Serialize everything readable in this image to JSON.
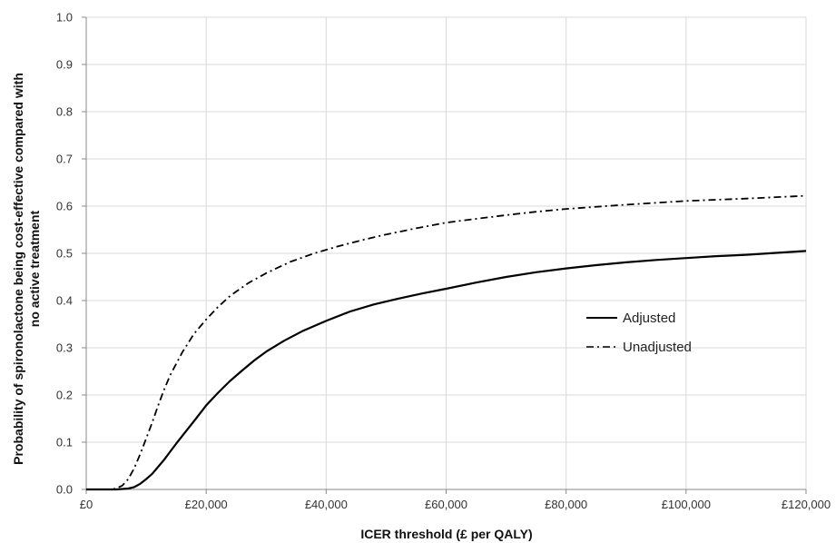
{
  "chart_data": {
    "type": "line",
    "title": "",
    "xlabel": "ICER threshold (£ per QALY)",
    "ylabel_lines": [
      "Probability of spironolactone being cost-effective compared with",
      "no active treatment"
    ],
    "xlim": [
      0,
      120000
    ],
    "ylim": [
      0,
      1
    ],
    "grid": true,
    "legend_position": "right-center",
    "x_ticks": [
      0,
      20000,
      40000,
      60000,
      80000,
      100000,
      120000
    ],
    "x_tick_labels": [
      "£0",
      "£20,000",
      "£40,000",
      "£60,000",
      "£80,000",
      "£100,000",
      "£120,000"
    ],
    "y_ticks": [
      0,
      0.1,
      0.2,
      0.3,
      0.4,
      0.5,
      0.6,
      0.7,
      0.8,
      0.9,
      1.0
    ],
    "y_tick_labels": [
      "0.0",
      "0.1",
      "0.2",
      "0.3",
      "0.4",
      "0.5",
      "0.6",
      "0.7",
      "0.8",
      "0.9",
      "1.0"
    ],
    "series": [
      {
        "name": "Adjusted",
        "style": "solid",
        "color": "#000000",
        "x": [
          0,
          5000,
          7000,
          8000,
          9000,
          10000,
          11000,
          12000,
          13000,
          14000,
          15000,
          16000,
          18000,
          20000,
          22000,
          24000,
          26000,
          28000,
          30000,
          33000,
          36000,
          40000,
          44000,
          48000,
          52000,
          56000,
          60000,
          65000,
          70000,
          75000,
          80000,
          85000,
          90000,
          95000,
          100000,
          105000,
          110000,
          115000,
          120000
        ],
        "y": [
          0,
          0,
          0.002,
          0.005,
          0.012,
          0.022,
          0.033,
          0.048,
          0.063,
          0.08,
          0.097,
          0.113,
          0.145,
          0.178,
          0.205,
          0.23,
          0.252,
          0.273,
          0.292,
          0.315,
          0.335,
          0.357,
          0.377,
          0.392,
          0.404,
          0.415,
          0.425,
          0.438,
          0.45,
          0.46,
          0.468,
          0.475,
          0.481,
          0.486,
          0.49,
          0.494,
          0.497,
          0.501,
          0.505
        ]
      },
      {
        "name": "Unadjusted",
        "style": "dash-dot",
        "color": "#000000",
        "x": [
          0,
          4000,
          5000,
          6000,
          7000,
          8000,
          9000,
          10000,
          11000,
          12000,
          13000,
          14000,
          16000,
          18000,
          20000,
          22000,
          24000,
          27000,
          30000,
          34000,
          38000,
          42000,
          46000,
          50000,
          55000,
          60000,
          65000,
          70000,
          75000,
          80000,
          90000,
          100000,
          110000,
          120000
        ],
        "y": [
          0,
          0,
          0.002,
          0.008,
          0.022,
          0.045,
          0.075,
          0.108,
          0.142,
          0.178,
          0.212,
          0.242,
          0.29,
          0.33,
          0.36,
          0.387,
          0.41,
          0.437,
          0.458,
          0.482,
          0.5,
          0.515,
          0.528,
          0.54,
          0.553,
          0.565,
          0.573,
          0.581,
          0.588,
          0.594,
          0.603,
          0.611,
          0.616,
          0.622
        ]
      }
    ]
  }
}
